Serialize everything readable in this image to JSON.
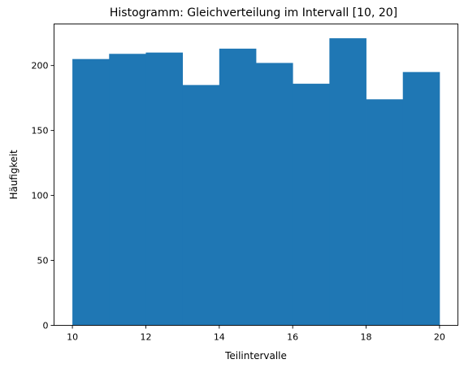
{
  "chart_data": {
    "type": "bar",
    "title": "Histogramm: Gleichverteilung im Intervall [10, 20]",
    "xlabel": "Teilintervalle",
    "ylabel": "Häufigkeit",
    "bin_edges": [
      10,
      11,
      12,
      13,
      14,
      15,
      16,
      17,
      18,
      19,
      20
    ],
    "values": [
      205,
      209,
      210,
      185,
      213,
      202,
      186,
      221,
      174,
      195
    ],
    "xlim": [
      9.5,
      20.5
    ],
    "ylim": [
      0,
      232
    ],
    "xticks": [
      10,
      12,
      14,
      16,
      18,
      20
    ],
    "yticks": [
      0,
      50,
      100,
      150,
      200
    ],
    "grid": false,
    "legend": false,
    "bar_color": "#1f77b4"
  }
}
